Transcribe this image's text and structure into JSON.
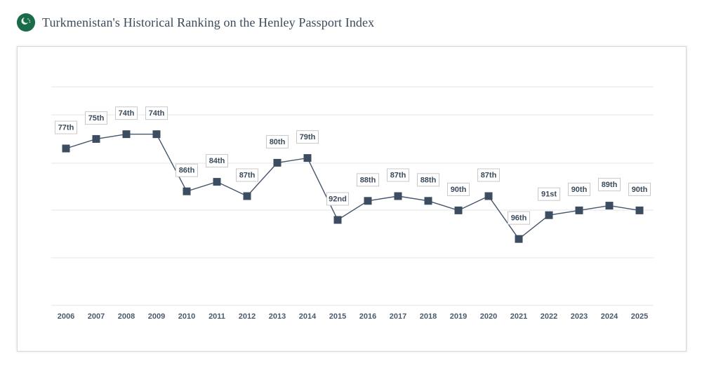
{
  "header": {
    "title": "Turkmenistan's Historical Ranking on the Henley Passport Index",
    "flag_icon": "turkmenistan-flag-icon",
    "flag_color": "#1a6b4a"
  },
  "colors": {
    "line": "#44546a",
    "marker": "#3d4d61",
    "grid": "#e6e6e6",
    "label_border": "#c9c9c9",
    "text": "#3b4a5a"
  },
  "chart_data": {
    "type": "line",
    "title": "Turkmenistan's Historical Ranking on the Henley Passport Index",
    "xlabel": "",
    "ylabel": "",
    "y_reversed": true,
    "grid": true,
    "legend": "none",
    "categories": [
      "2006",
      "2007",
      "2008",
      "2009",
      "2010",
      "2011",
      "2012",
      "2013",
      "2014",
      "2015",
      "2016",
      "2017",
      "2018",
      "2019",
      "2020",
      "2021",
      "2022",
      "2023",
      "2024",
      "2025"
    ],
    "values": [
      77,
      75,
      74,
      74,
      86,
      84,
      87,
      80,
      79,
      92,
      88,
      87,
      88,
      90,
      87,
      96,
      91,
      90,
      89,
      90
    ],
    "data_labels": [
      "77th",
      "75th",
      "74th",
      "74th",
      "86th",
      "84th",
      "87th",
      "80th",
      "79th",
      "92nd",
      "88th",
      "87th",
      "88th",
      "90th",
      "87th",
      "96th",
      "91st",
      "90th",
      "89th",
      "90th"
    ]
  }
}
